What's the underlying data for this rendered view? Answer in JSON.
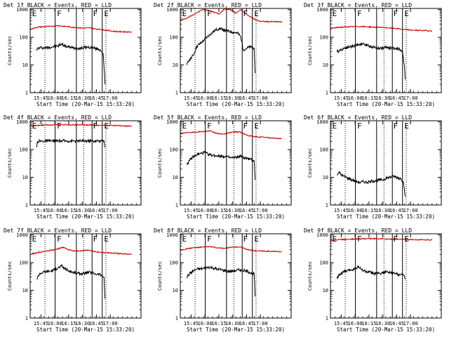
{
  "figure": {
    "xlabel_common": "Start Time (20-Mar-15 15:33:20)",
    "ylabel_common": "Counts/sec",
    "x_ticks": [
      "15:45",
      "16:00",
      "16:15",
      "16:30",
      "16:45",
      "17:00"
    ],
    "y_ticks": [
      "1",
      "10",
      "100",
      "1000"
    ],
    "colors": {
      "events": "#000000",
      "lld": "#cc0000",
      "background": "#ffffff"
    }
  },
  "chart_data": [
    {
      "type": "line",
      "title": "Det 1f BLACK = Events, RED = LLD",
      "ylabel": "Counts/sec",
      "xlabel": "Start Time (20-Mar-15 15:33:20)",
      "yscale": "log",
      "ylim": [
        1,
        1100
      ],
      "xlim_min": [
        0,
        120
      ],
      "dotted_min": [
        16,
        58,
        82
      ],
      "solid_min": [
        27,
        50,
        67,
        78
      ],
      "flags": [
        {
          "label": "E",
          "min": 2
        },
        {
          "label": "F",
          "min": 29
        },
        {
          "label": "F",
          "min": 68
        },
        {
          "label": "E",
          "min": 80
        }
      ],
      "series": [
        {
          "name": "Events",
          "color": "#000000",
          "x": [
            7,
            11,
            16,
            20,
            25,
            30,
            34,
            38,
            42,
            46,
            50,
            54,
            58,
            62,
            66,
            70,
            74,
            76,
            78,
            79,
            80,
            81
          ],
          "y": [
            38,
            42,
            42,
            43,
            46,
            48,
            58,
            48,
            44,
            42,
            41,
            40,
            43,
            44,
            42,
            40,
            37,
            35,
            30,
            25,
            8,
            2
          ]
        },
        {
          "name": "LLD",
          "color": "#cc0000",
          "x": [
            0,
            5,
            10,
            15,
            20,
            25,
            30,
            35,
            40,
            45,
            50,
            55,
            60,
            65,
            70,
            75,
            80,
            85,
            90,
            95,
            100,
            105,
            110
          ],
          "y": [
            190,
            220,
            235,
            240,
            245,
            250,
            265,
            250,
            245,
            230,
            225,
            215,
            215,
            220,
            200,
            195,
            185,
            175,
            165,
            160,
            158,
            157,
            156
          ]
        }
      ]
    },
    {
      "type": "line",
      "title": "Det 2f BLACK = Events, RED = LLD",
      "ylabel": "Counts/sec",
      "xlabel": "Start Time (20-Mar-15 15:33:20)",
      "yscale": "log",
      "ylim": [
        1,
        1100
      ],
      "xlim_min": [
        0,
        120
      ],
      "dotted_min": [
        16,
        58,
        82
      ],
      "solid_min": [
        27,
        50,
        67,
        78
      ],
      "flags": [
        {
          "label": "E",
          "min": 2
        },
        {
          "label": "F",
          "min": 29
        },
        {
          "label": "F",
          "min": 68
        },
        {
          "label": "E",
          "min": 80
        }
      ],
      "series": [
        {
          "name": "Events",
          "color": "#000000",
          "x": [
            7,
            10,
            14,
            18,
            22,
            26,
            30,
            34,
            38,
            42,
            46,
            50,
            54,
            58,
            62,
            65,
            67,
            68,
            72,
            76,
            80,
            81
          ],
          "y": [
            10,
            16,
            22,
            48,
            60,
            80,
            110,
            140,
            180,
            210,
            190,
            170,
            160,
            150,
            140,
            110,
            65,
            35,
            40,
            45,
            40,
            5
          ]
        },
        {
          "name": "LLD",
          "color": "#cc0000",
          "x": [
            0,
            6,
            12,
            18,
            24,
            30,
            36,
            42,
            48,
            54,
            60,
            66,
            72,
            78,
            82,
            86,
            90,
            100,
            110
          ],
          "y": [
            420,
            470,
            600,
            760,
            1000,
            950,
            800,
            700,
            1050,
            1000,
            750,
            1000,
            650,
            500,
            420,
            380,
            370,
            365,
            360
          ]
        }
      ]
    },
    {
      "type": "line",
      "title": "Det 3f BLACK = Events, RED = LLD",
      "ylabel": "Counts/sec",
      "xlabel": "Start Time (20-Mar-15 15:33:20)",
      "yscale": "log",
      "ylim": [
        1,
        1100
      ],
      "xlim_min": [
        0,
        120
      ],
      "dotted_min": [
        16,
        58,
        82
      ],
      "solid_min": [
        27,
        50,
        67,
        78
      ],
      "flags": [
        {
          "label": "E",
          "min": 2
        },
        {
          "label": "F",
          "min": 29
        },
        {
          "label": "F",
          "min": 68
        },
        {
          "label": "E",
          "min": 80
        }
      ],
      "series": [
        {
          "name": "Events",
          "color": "#000000",
          "x": [
            7,
            11,
            16,
            20,
            25,
            30,
            35,
            40,
            45,
            50,
            55,
            60,
            65,
            70,
            75,
            78,
            80,
            81
          ],
          "y": [
            30,
            35,
            42,
            45,
            48,
            55,
            58,
            50,
            45,
            42,
            40,
            43,
            42,
            40,
            38,
            30,
            10,
            3
          ]
        },
        {
          "name": "LLD",
          "color": "#cc0000",
          "x": [
            0,
            10,
            20,
            30,
            40,
            50,
            60,
            70,
            80,
            90,
            100,
            110
          ],
          "y": [
            210,
            230,
            240,
            245,
            240,
            230,
            220,
            210,
            190,
            180,
            175,
            170
          ]
        }
      ]
    },
    {
      "type": "line",
      "title": "Det 4f BLACK = Events, RED = LLD",
      "ylabel": "Counts/sec",
      "xlabel": "Start Time (20-Mar-15 15:33:20)",
      "yscale": "log",
      "ylim": [
        1,
        1100
      ],
      "xlim_min": [
        0,
        120
      ],
      "dotted_min": [
        16,
        58,
        82
      ],
      "solid_min": [
        27,
        50,
        67,
        78
      ],
      "flags": [
        {
          "label": "E",
          "min": 2
        },
        {
          "label": "F",
          "min": 29
        },
        {
          "label": "F",
          "min": 68
        },
        {
          "label": "E",
          "min": 80
        }
      ],
      "series": [
        {
          "name": "Events",
          "color": "#000000",
          "x": [
            7,
            8,
            20,
            40,
            60,
            80,
            81
          ],
          "y": [
            120,
            200,
            205,
            205,
            205,
            205,
            120
          ]
        },
        {
          "name": "LLD",
          "color": "#cc0000",
          "x": [
            0,
            10,
            20,
            30,
            40,
            50,
            60,
            70,
            80,
            90,
            100,
            110
          ],
          "y": [
            700,
            760,
            780,
            790,
            790,
            780,
            770,
            770,
            760,
            750,
            720,
            690
          ]
        }
      ]
    },
    {
      "type": "line",
      "title": "Det 5f BLACK = Events, RED = LLD",
      "ylabel": "Counts/sec",
      "xlabel": "Start Time (20-Mar-15 15:33:20)",
      "yscale": "log",
      "ylim": [
        1,
        1100
      ],
      "xlim_min": [
        0,
        120
      ],
      "dotted_min": [
        16,
        58,
        82
      ],
      "solid_min": [
        27,
        50,
        67,
        78
      ],
      "flags": [
        {
          "label": "E",
          "min": 2
        },
        {
          "label": "F",
          "min": 29
        },
        {
          "label": "F",
          "min": 68
        },
        {
          "label": "E",
          "min": 80
        }
      ],
      "series": [
        {
          "name": "Events",
          "color": "#000000",
          "x": [
            7,
            10,
            14,
            18,
            22,
            26,
            30,
            35,
            40,
            45,
            50,
            55,
            60,
            65,
            70,
            75,
            80,
            81
          ],
          "y": [
            30,
            40,
            55,
            65,
            72,
            80,
            68,
            62,
            60,
            58,
            55,
            50,
            52,
            58,
            50,
            45,
            40,
            8
          ]
        },
        {
          "name": "LLD",
          "color": "#cc0000",
          "x": [
            0,
            8,
            16,
            24,
            32,
            40,
            48,
            56,
            64,
            72,
            80,
            90,
            100,
            110
          ],
          "y": [
            380,
            420,
            430,
            450,
            470,
            380,
            360,
            430,
            440,
            330,
            290,
            280,
            260,
            250
          ]
        }
      ]
    },
    {
      "type": "line",
      "title": "Det 6f BLACK = Events, RED = LLD",
      "ylabel": "Counts/sec",
      "xlabel": "Start Time (20-Mar-15 15:33:20)",
      "yscale": "log",
      "ylim": [
        1,
        1100
      ],
      "xlim_min": [
        0,
        120
      ],
      "dotted_min": [
        16,
        58,
        82
      ],
      "solid_min": [
        27,
        50,
        67,
        78
      ],
      "flags": [
        {
          "label": "E",
          "min": 2
        },
        {
          "label": "F",
          "min": 29
        },
        {
          "label": "F",
          "min": 68
        },
        {
          "label": "E",
          "min": 80
        }
      ],
      "series": [
        {
          "name": "Events",
          "color": "#000000",
          "x": [
            7,
            9,
            11,
            14,
            17,
            20,
            24,
            28,
            32,
            36,
            40,
            44,
            48,
            52,
            56,
            60,
            64,
            68,
            72,
            76,
            79,
            81
          ],
          "y": [
            12,
            15,
            13,
            11,
            10,
            9,
            8,
            7,
            6.5,
            7,
            6.5,
            7,
            7.5,
            8,
            8,
            9,
            10,
            11,
            10,
            9,
            7,
            2
          ]
        }
      ]
    },
    {
      "type": "line",
      "title": "Det 7f BLACK = Events, RED = LLD",
      "ylabel": "Counts/sec",
      "xlabel": "Start Time (20-Mar-15 15:33:20)",
      "yscale": "log",
      "ylim": [
        1,
        1100
      ],
      "xlim_min": [
        0,
        120
      ],
      "dotted_min": [
        16,
        58,
        82
      ],
      "solid_min": [
        27,
        50,
        67,
        78
      ],
      "flags": [
        {
          "label": "E",
          "min": 2
        },
        {
          "label": "F",
          "min": 29
        },
        {
          "label": "F",
          "min": 68
        },
        {
          "label": "E",
          "min": 80
        }
      ],
      "series": [
        {
          "name": "Events",
          "color": "#000000",
          "x": [
            7,
            10,
            14,
            18,
            22,
            26,
            30,
            34,
            38,
            42,
            46,
            50,
            55,
            60,
            65,
            70,
            75,
            80,
            81
          ],
          "y": [
            25,
            40,
            45,
            48,
            50,
            55,
            65,
            75,
            60,
            50,
            45,
            42,
            40,
            42,
            45,
            40,
            38,
            30,
            5
          ]
        },
        {
          "name": "LLD",
          "color": "#cc0000",
          "x": [
            0,
            8,
            16,
            24,
            32,
            36,
            40,
            48,
            56,
            64,
            72,
            80,
            90,
            100,
            110
          ],
          "y": [
            200,
            230,
            260,
            280,
            330,
            360,
            300,
            260,
            270,
            280,
            240,
            230,
            220,
            210,
            200
          ]
        }
      ]
    },
    {
      "type": "line",
      "title": "Det 8f BLACK = Events, RED = LLD",
      "ylabel": "Counts/sec",
      "xlabel": "Start Time (20-Mar-15 15:33:20)",
      "yscale": "log",
      "ylim": [
        1,
        1100
      ],
      "xlim_min": [
        0,
        120
      ],
      "dotted_min": [
        16,
        58,
        82
      ],
      "solid_min": [
        27,
        50,
        67,
        78
      ],
      "flags": [
        {
          "label": "E",
          "min": 2
        },
        {
          "label": "F",
          "min": 29
        },
        {
          "label": "F",
          "min": 68
        },
        {
          "label": "E",
          "min": 80
        }
      ],
      "series": [
        {
          "name": "Events",
          "color": "#000000",
          "x": [
            7,
            10,
            14,
            18,
            22,
            26,
            30,
            35,
            40,
            45,
            50,
            55,
            60,
            65,
            70,
            75,
            80,
            81
          ],
          "y": [
            30,
            40,
            50,
            58,
            60,
            62,
            70,
            65,
            58,
            55,
            50,
            48,
            52,
            55,
            50,
            45,
            40,
            6
          ]
        },
        {
          "name": "LLD",
          "color": "#cc0000",
          "x": [
            0,
            8,
            16,
            24,
            32,
            40,
            48,
            56,
            64,
            72,
            80,
            90,
            100,
            110
          ],
          "y": [
            280,
            320,
            350,
            360,
            380,
            340,
            330,
            360,
            370,
            300,
            270,
            260,
            255,
            250
          ]
        }
      ]
    },
    {
      "type": "line",
      "title": "Det 9f BLACK = Events, RED = LLD",
      "ylabel": "Counts/sec",
      "xlabel": "Start Time (20-Mar-15 15:33:20)",
      "yscale": "log",
      "ylim": [
        1,
        1100
      ],
      "xlim_min": [
        0,
        120
      ],
      "dotted_min": [
        16,
        58,
        82
      ],
      "solid_min": [
        27,
        50,
        67,
        78
      ],
      "flags": [
        {
          "label": "E",
          "min": 2
        },
        {
          "label": "F",
          "min": 29
        },
        {
          "label": "F",
          "min": 68
        },
        {
          "label": "E",
          "min": 80
        }
      ],
      "series": [
        {
          "name": "Events",
          "color": "#000000",
          "x": [
            7,
            10,
            14,
            18,
            22,
            26,
            30,
            34,
            38,
            42,
            46,
            50,
            55,
            60,
            65,
            70,
            75,
            80,
            81
          ],
          "y": [
            30,
            38,
            45,
            50,
            55,
            60,
            70,
            55,
            48,
            45,
            42,
            40,
            42,
            45,
            43,
            40,
            38,
            35,
            25
          ]
        },
        {
          "name": "LLD",
          "color": "#cc0000",
          "x": [
            0,
            10,
            20,
            30,
            40,
            50,
            60,
            70,
            80,
            90,
            100,
            110
          ],
          "y": [
            650,
            680,
            700,
            720,
            740,
            730,
            720,
            700,
            690,
            680,
            670,
            660
          ]
        }
      ]
    }
  ]
}
